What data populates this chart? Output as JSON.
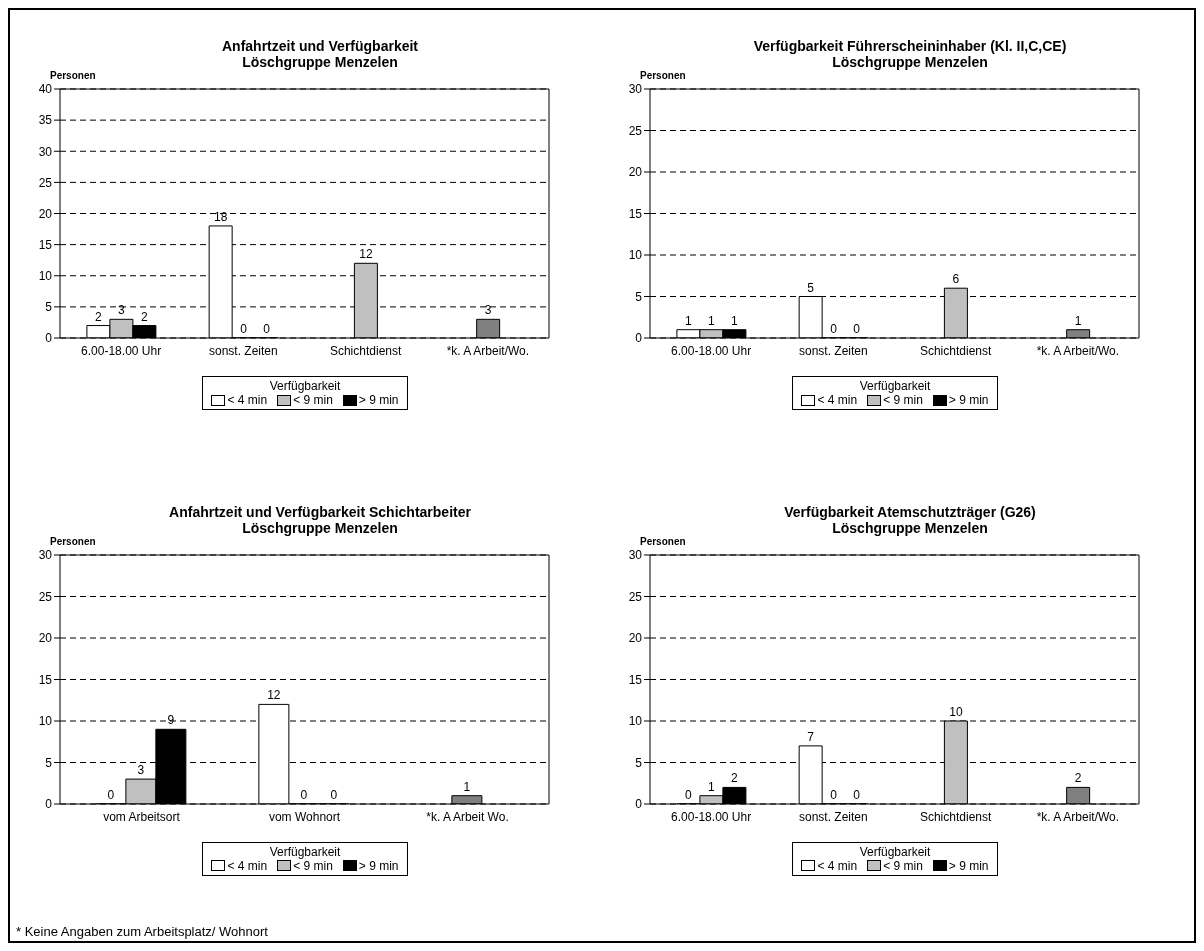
{
  "chart_data": [
    {
      "type": "bar",
      "title": "Anfahrtzeit und Verfügbarkeit",
      "subtitle": "Löschgruppe Menzelen",
      "ylabel": "Personen",
      "legend_title": "Verfügbarkeit",
      "legend": "bottom",
      "grid": "y",
      "data_labels": true,
      "categories": [
        "6.00-18.00 Uhr",
        "sonst. Zeiten",
        "Schichtdienst",
        "*k. A Arbeit/Wo."
      ],
      "series": [
        {
          "name": "< 4 min",
          "color": "#ffffff",
          "values": [
            2,
            18,
            null,
            null
          ]
        },
        {
          "name": "< 9 min",
          "color": "#c0c0c0",
          "colors": [
            "#c0c0c0",
            "#c0c0c0",
            "#c0c0c0",
            "#808080"
          ],
          "values": [
            3,
            0,
            12,
            3
          ]
        },
        {
          "name": "> 9 min",
          "color": "#000000",
          "values": [
            2,
            0,
            null,
            null
          ]
        }
      ],
      "ylim": [
        0,
        40
      ],
      "yticks": [
        0,
        5,
        10,
        15,
        20,
        25,
        30,
        35,
        40
      ]
    },
    {
      "type": "bar",
      "title": "Verfügbarkeit Führerscheininhaber (Kl. II,C,CE)",
      "subtitle": "Löschgruppe Menzelen",
      "ylabel": "Personen",
      "legend_title": "Verfügbarkeit",
      "legend": "bottom",
      "grid": "y",
      "data_labels": true,
      "categories": [
        "6.00-18.00 Uhr",
        "sonst. Zeiten",
        "Schichtdienst",
        "*k. A Arbeit/Wo."
      ],
      "series": [
        {
          "name": "< 4 min",
          "color": "#ffffff",
          "values": [
            1,
            5,
            null,
            null
          ]
        },
        {
          "name": "< 9 min",
          "color": "#c0c0c0",
          "colors": [
            "#c0c0c0",
            "#c0c0c0",
            "#c0c0c0",
            "#808080"
          ],
          "values": [
            1,
            0,
            6,
            1
          ]
        },
        {
          "name": "> 9 min",
          "color": "#000000",
          "values": [
            1,
            0,
            null,
            null
          ]
        }
      ],
      "ylim": [
        0,
        30
      ],
      "yticks": [
        0,
        5,
        10,
        15,
        20,
        25,
        30
      ]
    },
    {
      "type": "bar",
      "title": "Anfahrtzeit und Verfügbarkeit Schichtarbeiter",
      "subtitle": "Löschgruppe Menzelen",
      "ylabel": "Personen",
      "legend_title": "Verfügbarkeit",
      "legend": "bottom",
      "grid": "y",
      "data_labels": true,
      "categories": [
        "vom Arbeitsort",
        "vom Wohnort",
        "*k. A Arbeit Wo."
      ],
      "series": [
        {
          "name": "< 4 min",
          "color": "#ffffff",
          "values": [
            0,
            12,
            null
          ]
        },
        {
          "name": "< 9 min",
          "color": "#c0c0c0",
          "colors": [
            "#c0c0c0",
            "#c0c0c0",
            "#808080"
          ],
          "values": [
            3,
            0,
            1
          ]
        },
        {
          "name": "> 9 min",
          "color": "#000000",
          "values": [
            9,
            0,
            null
          ]
        }
      ],
      "ylim": [
        0,
        30
      ],
      "yticks": [
        0,
        5,
        10,
        15,
        20,
        25,
        30
      ],
      "annotations": [
        "* Keine Angaben zum Arbeitsplatz/ Wohnort"
      ]
    },
    {
      "type": "bar",
      "title": "Verfügbarkeit Atemschutzträger (G26)",
      "subtitle": "Löschgruppe Menzelen",
      "ylabel": "Personen",
      "legend_title": "Verfügbarkeit",
      "legend": "bottom",
      "grid": "y",
      "data_labels": true,
      "categories": [
        "6.00-18.00 Uhr",
        "sonst. Zeiten",
        "Schichtdienst",
        "*k. A Arbeit/Wo."
      ],
      "series": [
        {
          "name": "< 4 min",
          "color": "#ffffff",
          "values": [
            0,
            7,
            null,
            null
          ]
        },
        {
          "name": "< 9 min",
          "color": "#c0c0c0",
          "colors": [
            "#c0c0c0",
            "#c0c0c0",
            "#c0c0c0",
            "#808080"
          ],
          "values": [
            1,
            0,
            10,
            2
          ]
        },
        {
          "name": "> 9 min",
          "color": "#000000",
          "values": [
            2,
            0,
            null,
            null
          ]
        }
      ],
      "ylim": [
        0,
        30
      ],
      "yticks": [
        0,
        5,
        10,
        15,
        20,
        25,
        30
      ]
    }
  ]
}
